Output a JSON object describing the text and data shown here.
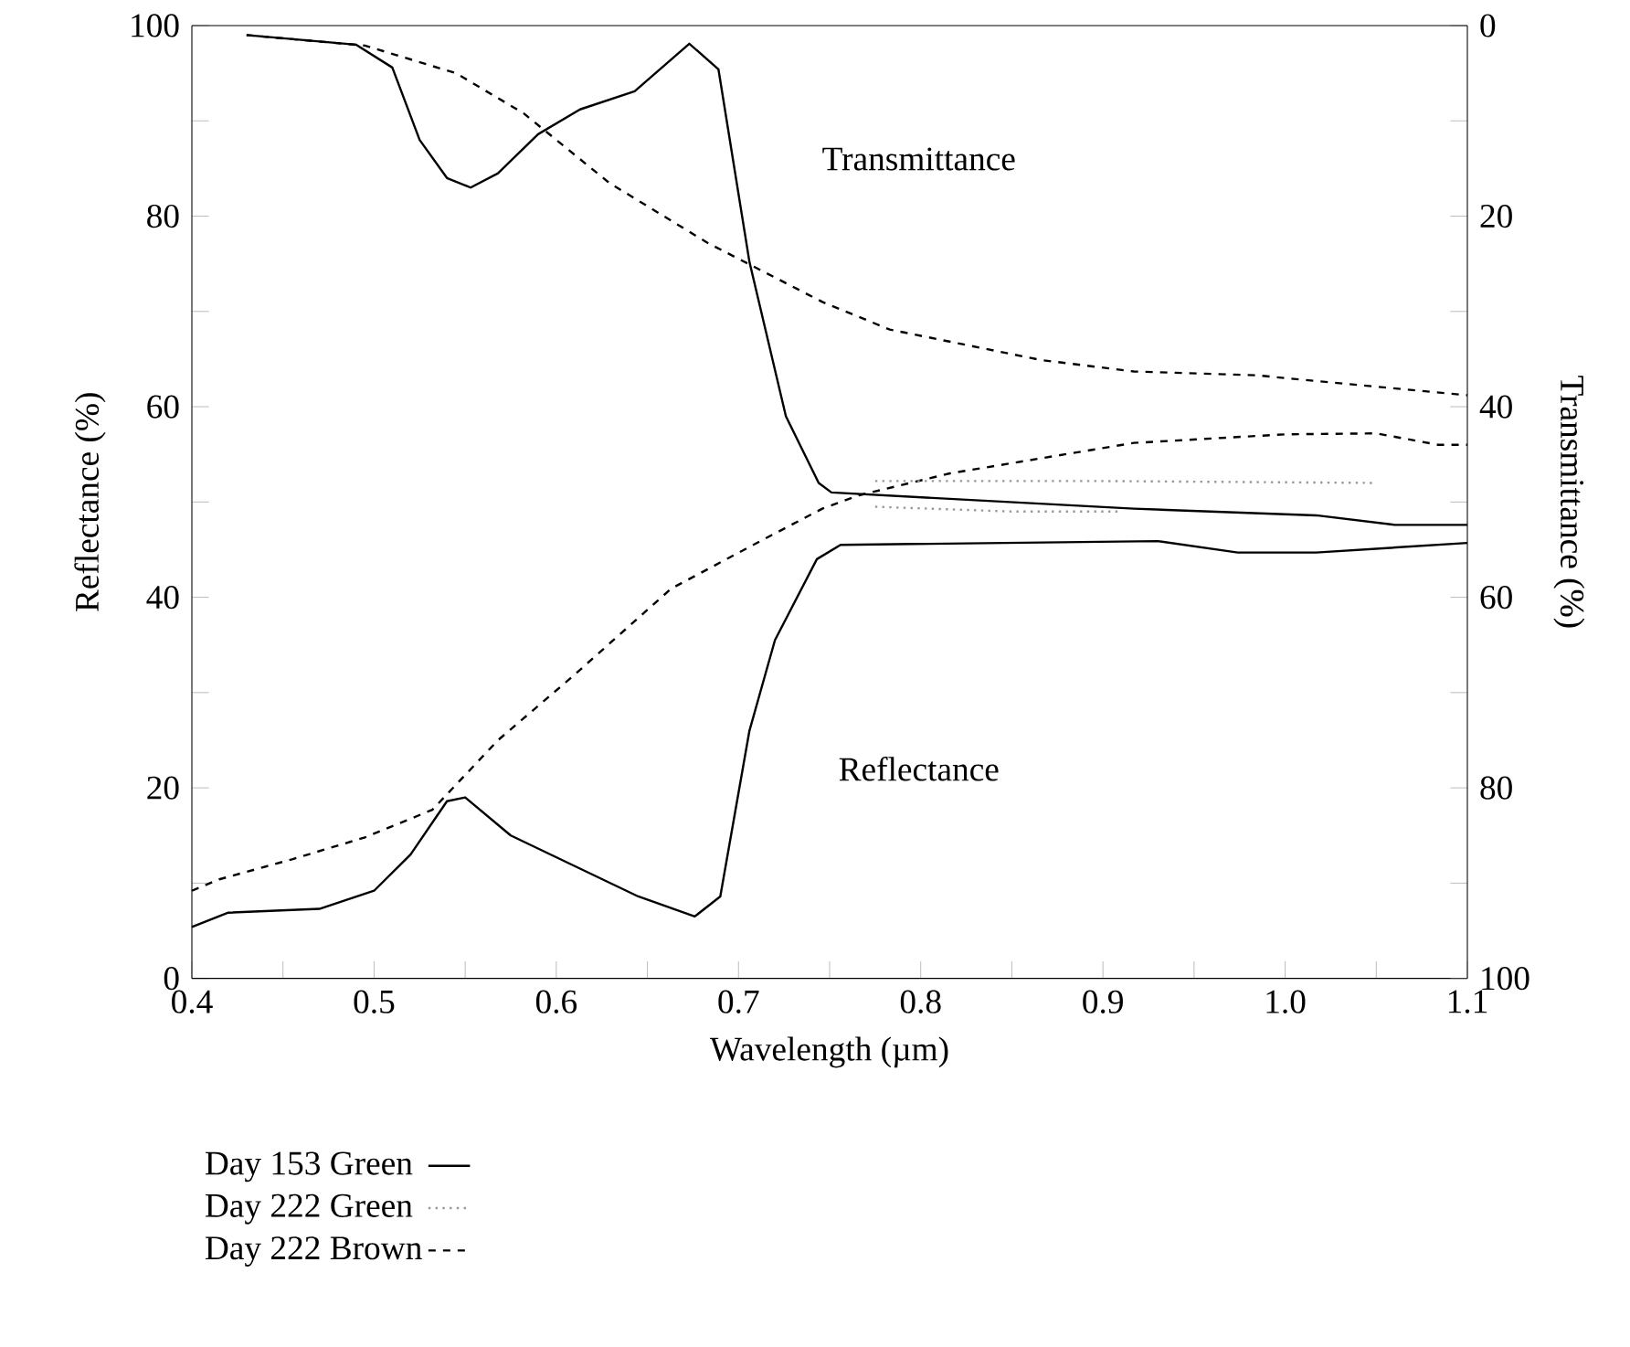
{
  "chart_data": {
    "type": "line",
    "xlabel": "Wavelength (µm)",
    "ylabel": "Reflectance (%)",
    "y2label": "Transmittance (%)",
    "xlim": [
      0.4,
      1.1
    ],
    "xticks": [
      0.4,
      {
        "value": 0.45,
        "label": null
      },
      0.5,
      {
        "value": 0.55,
        "label": null
      },
      0.6,
      {
        "value": 0.65,
        "label": null
      },
      0.7,
      {
        "value": 0.75,
        "label": null
      },
      0.8,
      {
        "value": 0.85,
        "label": null
      },
      0.9,
      {
        "value": 0.95,
        "label": null
      },
      {
        "value": 1.0,
        "label": "1.0"
      },
      {
        "value": 1.05,
        "label": null
      },
      1.1
    ],
    "ylim": [
      0,
      100
    ],
    "yticks": [
      0,
      {
        "value": 10,
        "label": null
      },
      20,
      {
        "value": 30,
        "label": null
      },
      40,
      {
        "value": 50,
        "label": null
      },
      60,
      {
        "value": 70,
        "label": null
      },
      80,
      {
        "value": 90,
        "label": null
      },
      100
    ],
    "y2lim": [
      100,
      0
    ],
    "y2ticks": [
      0,
      {
        "value": 10,
        "label": null
      },
      20,
      {
        "value": 30,
        "label": null
      },
      40,
      {
        "value": 50,
        "label": null
      },
      60,
      {
        "value": 70,
        "label": null
      },
      80,
      {
        "value": 90,
        "label": null
      },
      100
    ],
    "legend": "bottom",
    "grid": false,
    "annotations": [
      "Transmittance",
      "Reflectance"
    ],
    "series": [
      {
        "name": "Day 153 Green",
        "color": "#000000",
        "line_style": "solid",
        "x": [
          0.4,
          0.42,
          0.47,
          0.5,
          0.52,
          0.54,
          0.55,
          0.575,
          0.645,
          0.676,
          0.69,
          0.706,
          0.72,
          0.743,
          0.756,
          0.93,
          0.974,
          1.017,
          1.1
        ],
        "values": [
          5.4,
          6.9,
          7.3,
          9.2,
          13,
          18.6,
          19,
          15,
          8.6,
          6.5,
          8.6,
          26,
          35.5,
          44,
          45.5,
          45.9,
          44.7,
          44.7,
          45.7
        ]
      },
      {
        "name": "Day 222 Green",
        "color": "#999999",
        "line_style": "dotted",
        "x": [
          0.775,
          0.85,
          0.91
        ],
        "values": [
          49.5,
          49,
          49
        ]
      },
      {
        "name": "Day 222 Brown",
        "color": "#000000",
        "line_style": "dashed",
        "x": [
          0.4,
          0.415,
          0.455,
          0.495,
          0.532,
          0.568,
          0.609,
          0.663,
          0.713,
          0.746,
          0.766,
          0.816,
          0.917,
          1.0,
          1.05,
          1.084,
          1.1
        ],
        "values": [
          9.2,
          10.4,
          12.5,
          14.8,
          17.7,
          25,
          31.7,
          40.9,
          46,
          49.3,
          50.7,
          53,
          56.2,
          57.1,
          57.2,
          56,
          56
        ]
      },
      {
        "axis": "y2",
        "color": "#000000",
        "line_style": "solid",
        "x": [
          0.43,
          0.49,
          0.51,
          0.525,
          0.54,
          0.553,
          0.568,
          0.59,
          0.613,
          0.643,
          0.673,
          0.689,
          0.706,
          0.726,
          0.744,
          0.751,
          0.917,
          1.017,
          1.06,
          1.1
        ],
        "values": [
          1,
          2,
          4.4,
          12,
          16,
          17,
          15.5,
          11.4,
          8.8,
          6.9,
          1.9,
          4.6,
          24.8,
          41,
          48,
          49,
          50.7,
          51.4,
          52.4,
          52.4
        ]
      },
      {
        "axis": "y2",
        "color": "#999999",
        "line_style": "dotted",
        "x": [
          0.775,
          0.9,
          1.05
        ],
        "values": [
          47.8,
          47.8,
          48
        ]
      },
      {
        "axis": "y2",
        "color": "#000000",
        "line_style": "dashed",
        "x": [
          0.43,
          0.495,
          0.545,
          0.582,
          0.629,
          0.683,
          0.746,
          0.783,
          0.866,
          0.917,
          0.984,
          1.1
        ],
        "values": [
          1,
          2.1,
          5,
          9.2,
          16.5,
          22.8,
          29,
          31.9,
          35.1,
          36.3,
          36.7,
          38.8
        ]
      }
    ]
  }
}
